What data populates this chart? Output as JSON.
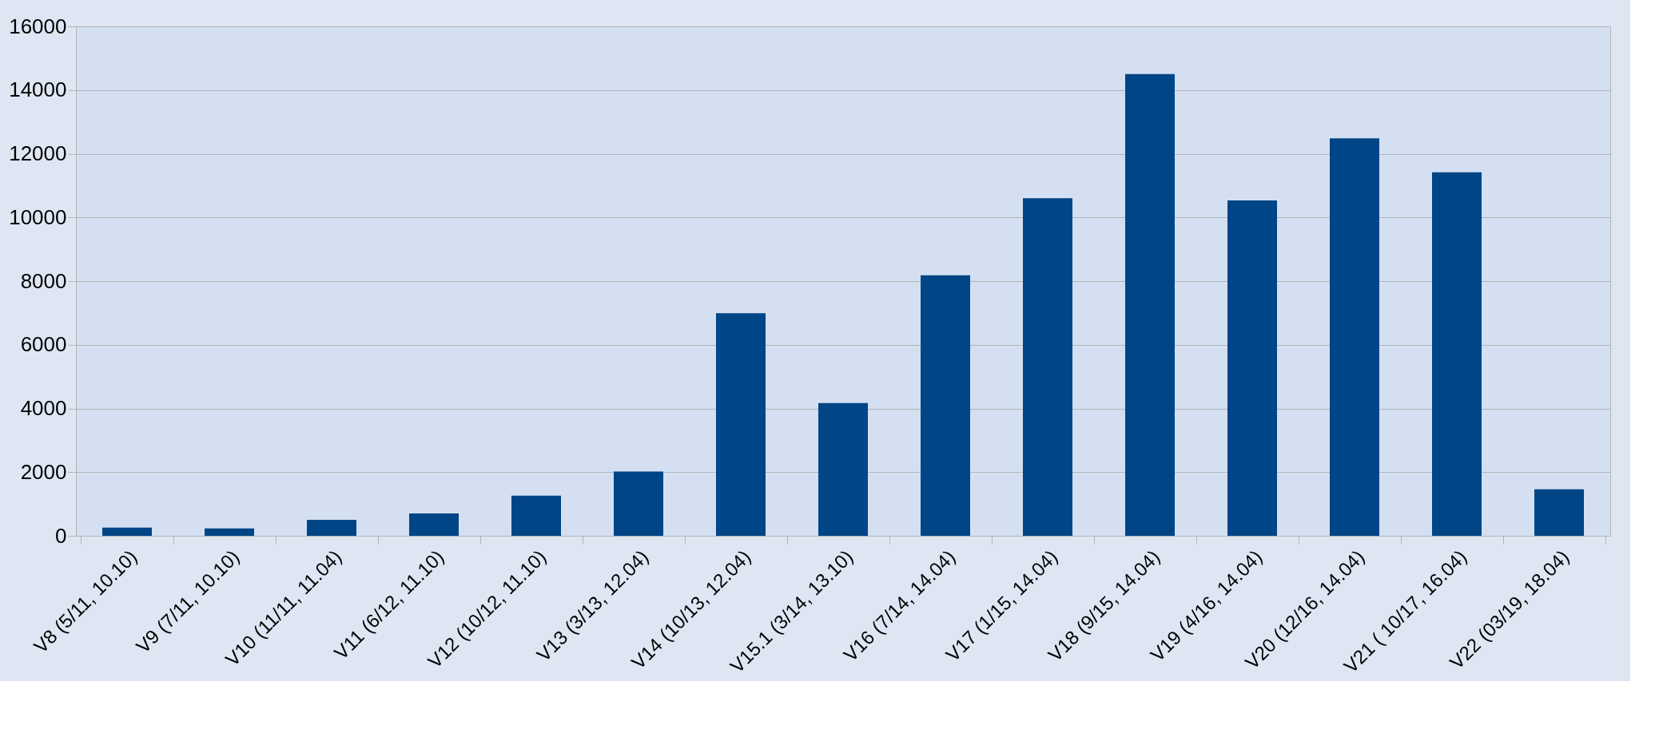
{
  "chart_data": {
    "type": "bar",
    "categories": [
      "V8 (5/11, 10.10)",
      "V9 (7/11, 10.10)",
      "V10 (11/11, 11.04)",
      "V11 (6/12, 11.10)",
      "V12 (10/12, 11.10)",
      "V13 (3/13, 12.04)",
      "V14 (10/13, 12.04)",
      "V15.1 (3/14, 13.10)",
      "V16 (7/14, 14.04)",
      "V17 (1/15, 14.04)",
      "V18 (9/15, 14.04)",
      "V19 (4/16, 14.04)",
      "V20 (12/16, 14.04)",
      "V21 ( 10/17, 16.04)",
      "V22 (03/19, 18.04)"
    ],
    "values": [
      260,
      230,
      500,
      700,
      1260,
      2020,
      6990,
      4170,
      8180,
      10600,
      14500,
      10530,
      12480,
      11420,
      1460
    ],
    "color": "#004586",
    "ylim": [
      0,
      16000
    ],
    "yticks": [
      0,
      2000,
      4000,
      6000,
      8000,
      10000,
      12000,
      14000,
      16000
    ],
    "grid": "y"
  }
}
